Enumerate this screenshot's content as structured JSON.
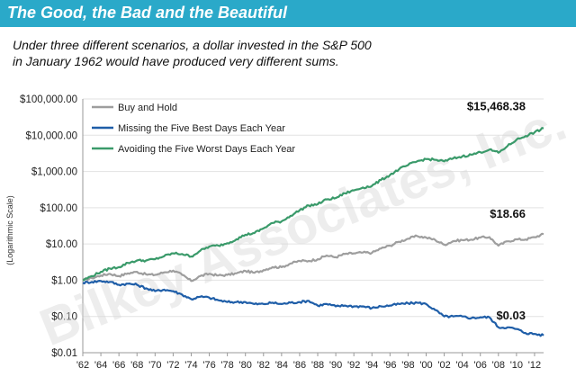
{
  "header": {
    "title": "The Good, the Bad and the Beautiful",
    "subtitle_line1": "Under three different scenarios, a dollar invested in the S&P 500",
    "subtitle_line2": "in January 1962 would have produced very different sums."
  },
  "watermark": "Bilkey Associates, Inc.",
  "colors": {
    "banner": "#2aa9c9",
    "buy_and_hold": "#9e9e9e",
    "missing_best": "#1f5ea8",
    "avoiding_worst": "#3a9a6a"
  },
  "chart_data": {
    "type": "line",
    "title": "",
    "xlabel": "",
    "ylabel": "(Logarithmic Scale)",
    "yscale": "log",
    "ylim": [
      0.01,
      100000
    ],
    "xlim": [
      1962,
      2013
    ],
    "yticks": [
      {
        "value": 100000,
        "label": "$100,000.00"
      },
      {
        "value": 10000,
        "label": "$10,000.00"
      },
      {
        "value": 1000,
        "label": "$1,000.00"
      },
      {
        "value": 100,
        "label": "$100.00"
      },
      {
        "value": 10,
        "label": "$10.00"
      },
      {
        "value": 1,
        "label": "$1.00"
      },
      {
        "value": 0.1,
        "label": "$0.10"
      },
      {
        "value": 0.01,
        "label": "$0.01"
      }
    ],
    "xticks": [
      {
        "value": 1962,
        "label": "'62"
      },
      {
        "value": 1964,
        "label": "'64"
      },
      {
        "value": 1966,
        "label": "'66"
      },
      {
        "value": 1968,
        "label": "'68"
      },
      {
        "value": 1970,
        "label": "'70"
      },
      {
        "value": 1972,
        "label": "'72"
      },
      {
        "value": 1974,
        "label": "'74"
      },
      {
        "value": 1976,
        "label": "'76"
      },
      {
        "value": 1978,
        "label": "'78"
      },
      {
        "value": 1980,
        "label": "'80"
      },
      {
        "value": 1982,
        "label": "'82"
      },
      {
        "value": 1984,
        "label": "'84"
      },
      {
        "value": 1986,
        "label": "'86"
      },
      {
        "value": 1988,
        "label": "'88"
      },
      {
        "value": 1990,
        "label": "'90"
      },
      {
        "value": 1992,
        "label": "'92"
      },
      {
        "value": 1994,
        "label": "'94"
      },
      {
        "value": 1996,
        "label": "'96"
      },
      {
        "value": 1998,
        "label": "'98"
      },
      {
        "value": 2000,
        "label": "'00"
      },
      {
        "value": 2002,
        "label": "'02"
      },
      {
        "value": 2004,
        "label": "'04"
      },
      {
        "value": 2006,
        "label": "'06"
      },
      {
        "value": 2008,
        "label": "'08"
      },
      {
        "value": 2010,
        "label": "'10"
      },
      {
        "value": 2012,
        "label": "'12"
      }
    ],
    "legend_position": "top-left",
    "series": [
      {
        "name": "Buy and Hold",
        "color_key": "buy_and_hold",
        "end_label": "$18.66",
        "x": [
          1962,
          1963,
          1964,
          1965,
          1966,
          1967,
          1968,
          1969,
          1970,
          1971,
          1972,
          1973,
          1974,
          1975,
          1976,
          1977,
          1978,
          1979,
          1980,
          1981,
          1982,
          1983,
          1984,
          1985,
          1986,
          1987,
          1988,
          1989,
          1990,
          1991,
          1992,
          1993,
          1994,
          1995,
          1996,
          1997,
          1998,
          1999,
          2000,
          2001,
          2002,
          2003,
          2004,
          2005,
          2006,
          2007,
          2008,
          2009,
          2010,
          2011,
          2012,
          2013
        ],
        "y": [
          1.0,
          1.15,
          1.35,
          1.5,
          1.3,
          1.55,
          1.7,
          1.45,
          1.4,
          1.65,
          1.85,
          1.4,
          0.95,
          1.3,
          1.5,
          1.35,
          1.4,
          1.55,
          1.8,
          1.6,
          1.9,
          2.3,
          2.3,
          2.9,
          3.4,
          3.4,
          3.8,
          4.8,
          4.3,
          5.3,
          5.5,
          5.8,
          5.7,
          7.5,
          9.0,
          11.5,
          14.0,
          16.5,
          15.0,
          13.0,
          9.5,
          12.0,
          12.8,
          13.2,
          15.0,
          15.5,
          9.0,
          11.8,
          13.4,
          13.3,
          15.4,
          18.66
        ]
      },
      {
        "name": "Missing the Five Best Days Each Year",
        "color_key": "missing_best",
        "end_label": "$0.03",
        "x": [
          1962,
          1963,
          1964,
          1965,
          1966,
          1967,
          1968,
          1969,
          1970,
          1971,
          1972,
          1973,
          1974,
          1975,
          1976,
          1977,
          1978,
          1979,
          1980,
          1981,
          1982,
          1983,
          1984,
          1985,
          1986,
          1987,
          1988,
          1989,
          1990,
          1991,
          1992,
          1993,
          1994,
          1995,
          1996,
          1997,
          1998,
          1999,
          2000,
          2001,
          2002,
          2003,
          2004,
          2005,
          2006,
          2007,
          2008,
          2009,
          2010,
          2011,
          2012,
          2013
        ],
        "y": [
          0.85,
          0.9,
          0.95,
          0.9,
          0.75,
          0.8,
          0.75,
          0.6,
          0.5,
          0.55,
          0.5,
          0.4,
          0.3,
          0.35,
          0.33,
          0.28,
          0.25,
          0.25,
          0.25,
          0.22,
          0.22,
          0.24,
          0.22,
          0.24,
          0.25,
          0.27,
          0.2,
          0.22,
          0.19,
          0.2,
          0.19,
          0.19,
          0.17,
          0.19,
          0.2,
          0.22,
          0.23,
          0.24,
          0.22,
          0.15,
          0.1,
          0.1,
          0.1,
          0.09,
          0.095,
          0.095,
          0.05,
          0.05,
          0.045,
          0.035,
          0.033,
          0.03
        ]
      },
      {
        "name": "Avoiding the Five Worst Days Each Year",
        "color_key": "avoiding_worst",
        "end_label": "$15,468.38",
        "x": [
          1962,
          1963,
          1964,
          1965,
          1966,
          1967,
          1968,
          1969,
          1970,
          1971,
          1972,
          1973,
          1974,
          1975,
          1976,
          1977,
          1978,
          1979,
          1980,
          1981,
          1982,
          1983,
          1984,
          1985,
          1986,
          1987,
          1988,
          1989,
          1990,
          1991,
          1992,
          1993,
          1994,
          1995,
          1996,
          1997,
          1998,
          1999,
          2000,
          2001,
          2002,
          2003,
          2004,
          2005,
          2006,
          2007,
          2008,
          2009,
          2010,
          2011,
          2012,
          2013
        ],
        "y": [
          1.0,
          1.3,
          1.7,
          2.1,
          2.3,
          3.0,
          3.5,
          3.5,
          3.8,
          4.6,
          5.5,
          5.3,
          4.5,
          6.5,
          8.5,
          9.0,
          10.5,
          13.5,
          18.0,
          20.0,
          27.0,
          38.0,
          42.0,
          60.0,
          85.0,
          115.0,
          125.0,
          170.0,
          185.0,
          250.0,
          300.0,
          360.0,
          400.0,
          580.0,
          800.0,
          1150.0,
          1500.0,
          1900.0,
          2200.0,
          2100.0,
          1900.0,
          2300.0,
          2600.0,
          2900.0,
          3400.0,
          4000.0,
          3300.0,
          5000.0,
          7500.0,
          9500.0,
          12000.0,
          15468.38
        ]
      }
    ]
  }
}
